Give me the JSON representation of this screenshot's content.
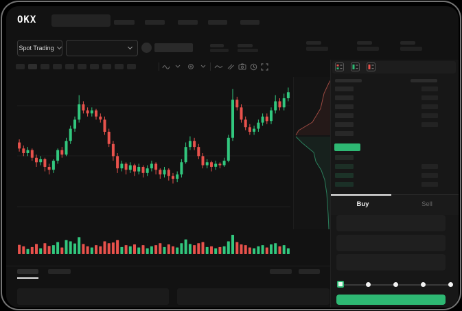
{
  "header": {
    "logo_text": "OKX"
  },
  "market_bar": {
    "market_type_label": "Spot Trading"
  },
  "order_panel": {
    "buy_tab": "Buy",
    "sell_tab": "Sell",
    "slider_stop_count": 5
  },
  "colors": {
    "accent_green": "#2eb873",
    "candle_up": "#32c77e",
    "candle_down": "#e8524c"
  },
  "chart_data": {
    "type": "candlestick",
    "up_color": "#32c77e",
    "down_color": "#e8524c",
    "grid_color": "#1e1e1e",
    "gridlines": [
      42,
      115,
      189
    ],
    "candles": [
      [
        57,
        53,
        59,
        51
      ],
      [
        53,
        50,
        55,
        48
      ],
      [
        50,
        52,
        54,
        48
      ],
      [
        52,
        47,
        53,
        45
      ],
      [
        47,
        44,
        49,
        41
      ],
      [
        44,
        46,
        48,
        42
      ],
      [
        46,
        41,
        47,
        38
      ],
      [
        41,
        39,
        43,
        36
      ],
      [
        39,
        45,
        46,
        37
      ],
      [
        45,
        52,
        53,
        43
      ],
      [
        52,
        49,
        54,
        47
      ],
      [
        49,
        58,
        60,
        48
      ],
      [
        58,
        66,
        68,
        56
      ],
      [
        66,
        72,
        74,
        64
      ],
      [
        72,
        82,
        88,
        70
      ],
      [
        82,
        78,
        84,
        76
      ],
      [
        78,
        76,
        80,
        74
      ],
      [
        76,
        78,
        80,
        74
      ],
      [
        78,
        74,
        79,
        72
      ],
      [
        74,
        72,
        76,
        70
      ],
      [
        72,
        64,
        74,
        62
      ],
      [
        64,
        56,
        66,
        54
      ],
      [
        56,
        48,
        58,
        45
      ],
      [
        48,
        40,
        50,
        37
      ],
      [
        40,
        43,
        45,
        38
      ],
      [
        43,
        39,
        44,
        36
      ],
      [
        39,
        42,
        44,
        37
      ],
      [
        42,
        38,
        43,
        35
      ],
      [
        38,
        41,
        43,
        36
      ],
      [
        41,
        37,
        42,
        34
      ],
      [
        37,
        40,
        42,
        35
      ],
      [
        40,
        43,
        45,
        38
      ],
      [
        43,
        39,
        44,
        36
      ],
      [
        39,
        36,
        40,
        33
      ],
      [
        36,
        39,
        41,
        34
      ],
      [
        39,
        35,
        40,
        32
      ],
      [
        35,
        33,
        37,
        30
      ],
      [
        33,
        36,
        38,
        31
      ],
      [
        36,
        44,
        46,
        34
      ],
      [
        44,
        54,
        57,
        43
      ],
      [
        54,
        58,
        61,
        52
      ],
      [
        58,
        54,
        60,
        52
      ],
      [
        54,
        48,
        56,
        46
      ],
      [
        48,
        42,
        50,
        40
      ],
      [
        42,
        44,
        46,
        40
      ],
      [
        44,
        41,
        45,
        38
      ],
      [
        41,
        43,
        45,
        39
      ],
      [
        43,
        42,
        44,
        40
      ],
      [
        42,
        45,
        47,
        41
      ],
      [
        45,
        60,
        62,
        44
      ],
      [
        60,
        85,
        92,
        58
      ],
      [
        85,
        80,
        87,
        78
      ],
      [
        80,
        72,
        82,
        70
      ],
      [
        72,
        67,
        74,
        65
      ],
      [
        67,
        64,
        69,
        62
      ],
      [
        64,
        66,
        68,
        62
      ],
      [
        66,
        70,
        72,
        64
      ],
      [
        70,
        74,
        76,
        68
      ],
      [
        74,
        71,
        76,
        69
      ],
      [
        71,
        78,
        80,
        69
      ],
      [
        78,
        84,
        88,
        76
      ],
      [
        84,
        80,
        86,
        78
      ],
      [
        80,
        86,
        89,
        78
      ],
      [
        86,
        90,
        93,
        84
      ]
    ],
    "volume": [
      48,
      40,
      26,
      36,
      52,
      30,
      56,
      42,
      46,
      62,
      34,
      72,
      66,
      55,
      88,
      52,
      40,
      34,
      46,
      40,
      66,
      56,
      60,
      72,
      36,
      46,
      40,
      50,
      34,
      46,
      30,
      40,
      46,
      56,
      36,
      50,
      40,
      34,
      56,
      76,
      52,
      46,
      56,
      62,
      36,
      40,
      30,
      36,
      40,
      66,
      100,
      62,
      50,
      46,
      34,
      30,
      40,
      46,
      34,
      50,
      56,
      40,
      46,
      30
    ]
  },
  "depth_chart": {
    "ask_fill": "rgba(150,60,52,0.13)",
    "ask_line": "#9c4a42",
    "bid_fill": "rgba(43,127,92,0.13)",
    "bid_line": "#2b7f5c",
    "asks": [
      [
        54,
        4
      ],
      [
        51,
        9
      ],
      [
        44,
        24
      ],
      [
        39,
        46
      ],
      [
        27,
        66
      ],
      [
        7,
        78
      ],
      [
        3,
        85
      ]
    ],
    "bids": [
      [
        3,
        87
      ],
      [
        12,
        96
      ],
      [
        24,
        106
      ],
      [
        29,
        110
      ],
      [
        32,
        123
      ],
      [
        40,
        136
      ],
      [
        45,
        150
      ],
      [
        48,
        170
      ],
      [
        50,
        200
      ],
      [
        51,
        222
      ]
    ]
  },
  "order_book": {
    "ask_rows": [
      {
        "left": true,
        "right": true
      },
      {
        "left": true,
        "right": true
      },
      {
        "left": true,
        "right": true
      },
      {
        "left": true,
        "right": true
      },
      {
        "left": true,
        "right": true
      },
      {
        "left": true,
        "right": false
      }
    ],
    "bid_rows": [
      {
        "left": "#242a26",
        "right": false
      },
      {
        "left": "#1d2f26",
        "right": true
      },
      {
        "left": "#1c3328",
        "right": true
      },
      {
        "left": "#1b3027",
        "right": true
      }
    ]
  }
}
